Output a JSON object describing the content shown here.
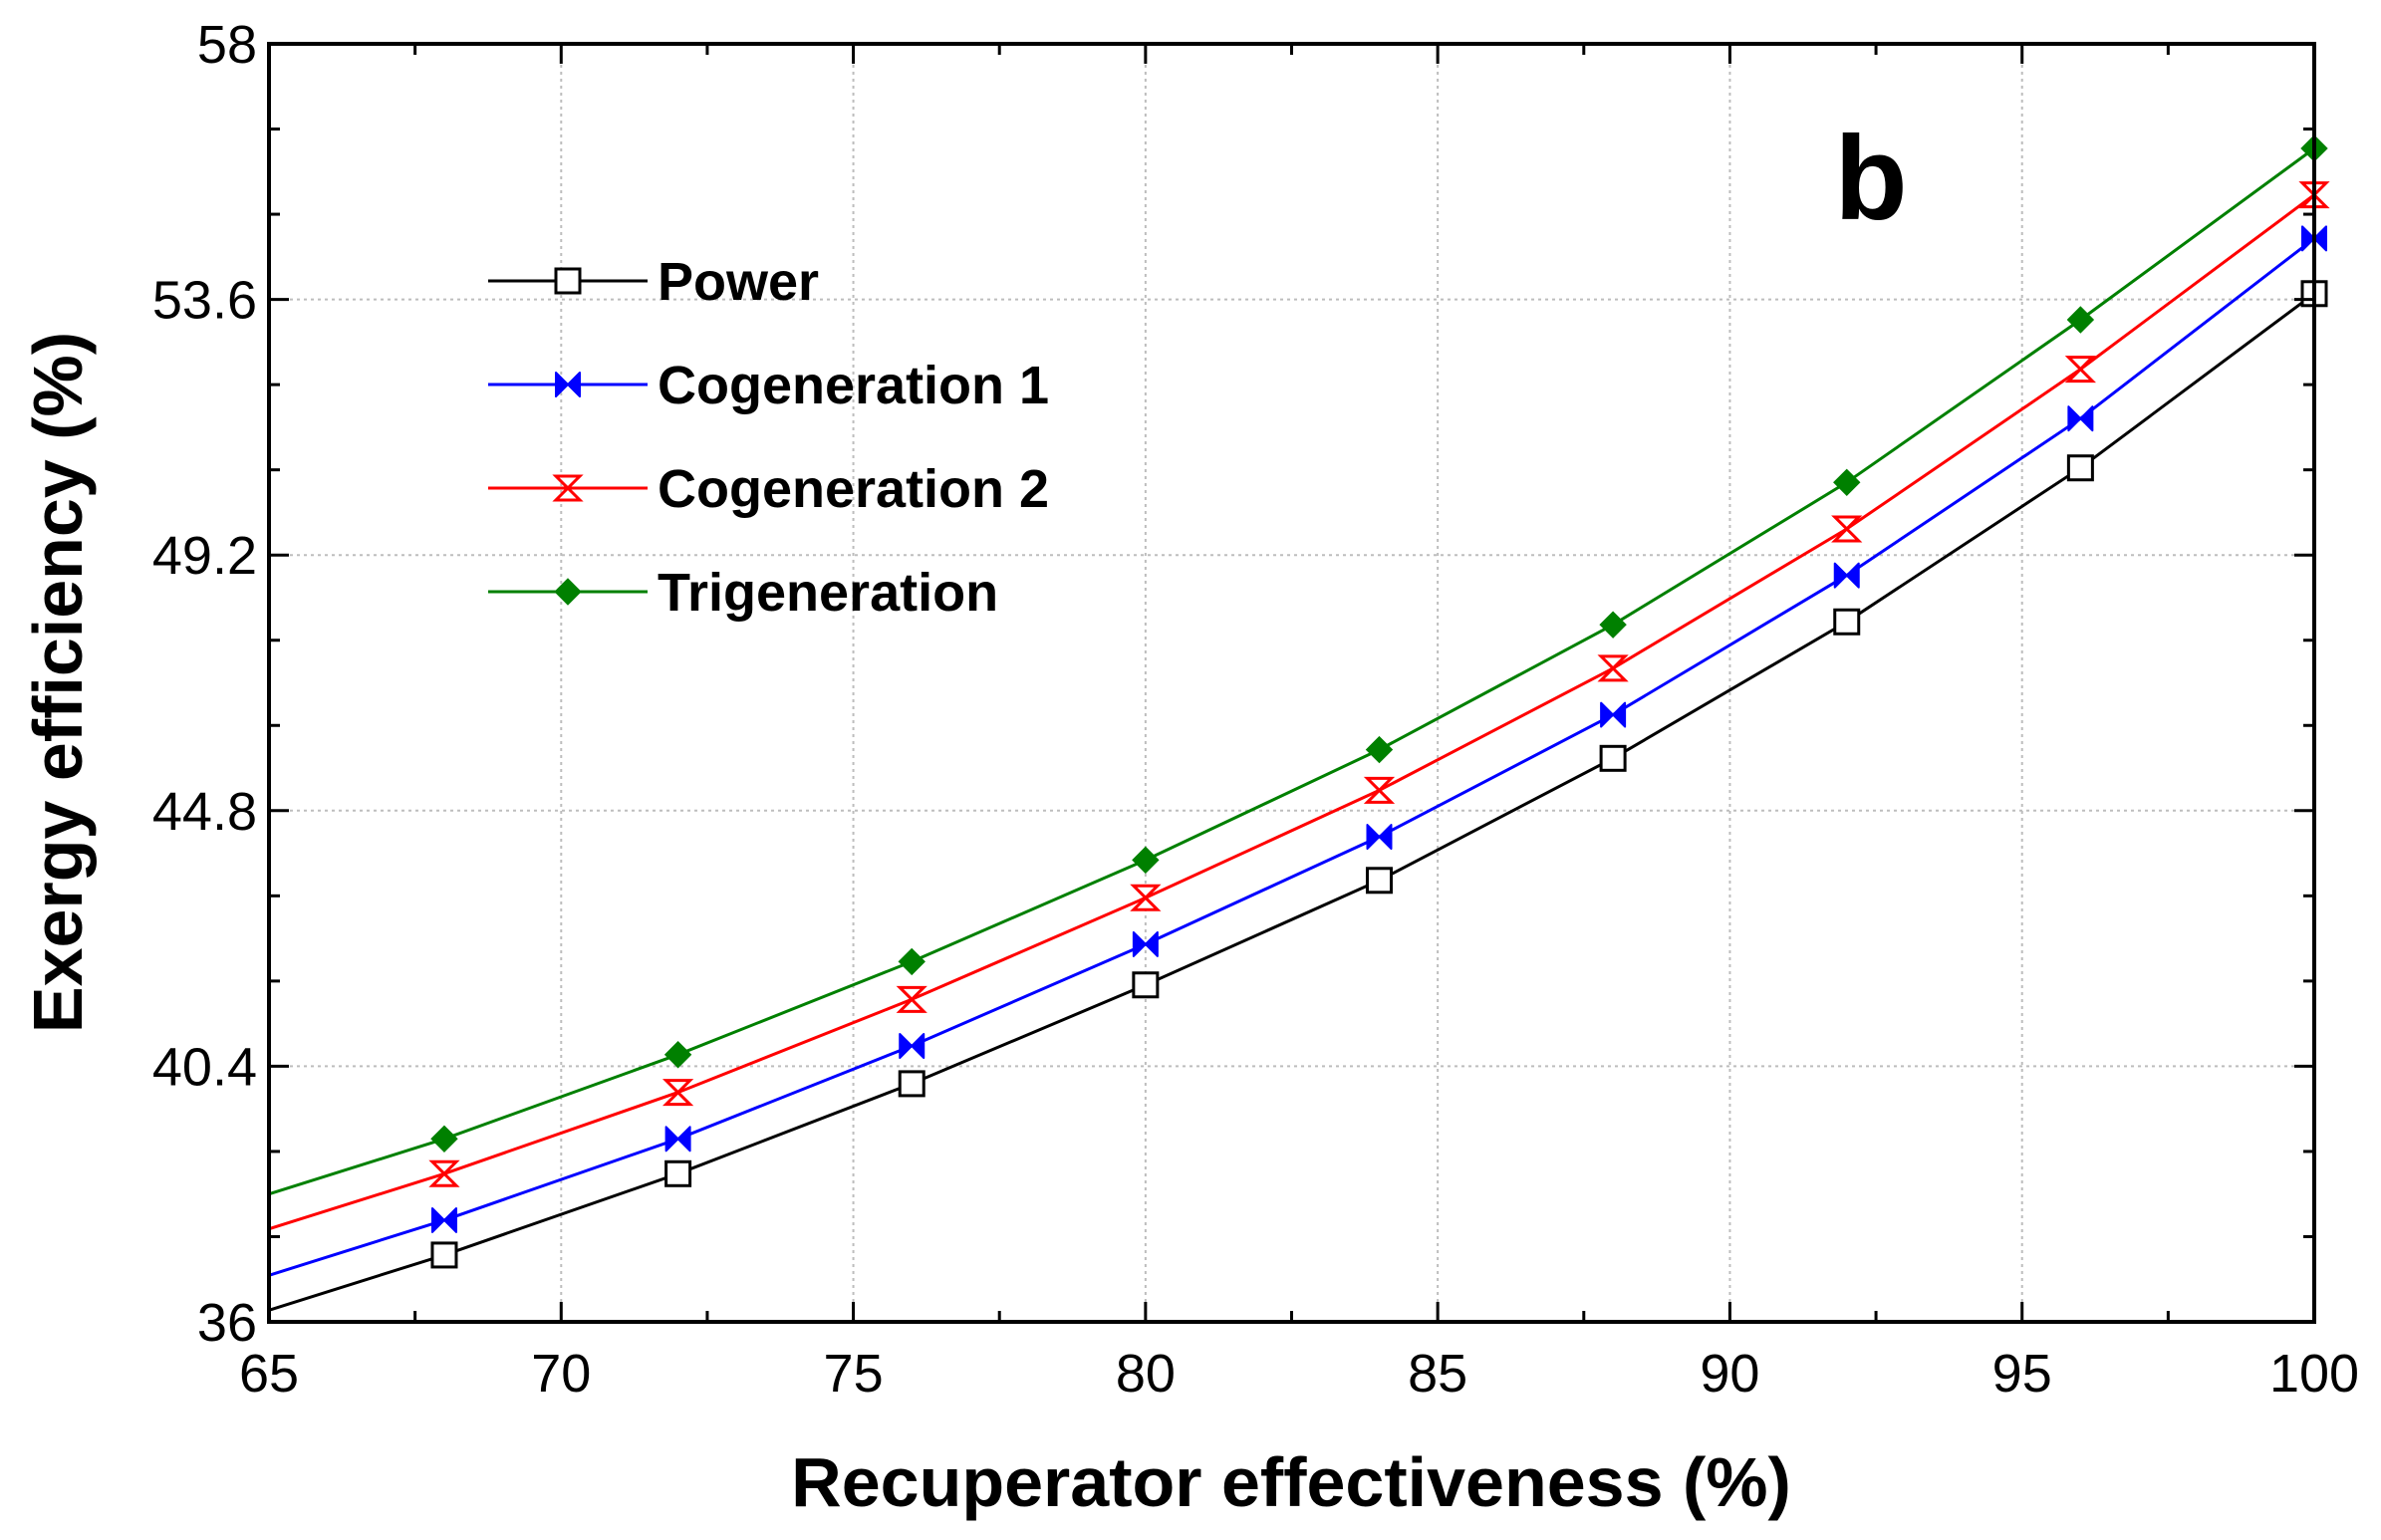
{
  "chart_data": {
    "type": "line",
    "panel_label": "b",
    "xlabel": "Recuperator effectiveness (%)",
    "ylabel": "Exergy efficiency (%)",
    "xlim": [
      65,
      100
    ],
    "ylim": [
      36,
      58
    ],
    "xticks": [
      65,
      70,
      75,
      80,
      85,
      90,
      95,
      100
    ],
    "xtick_labels": [
      "65",
      "70",
      "75",
      "80",
      "85",
      "90",
      "95",
      "100"
    ],
    "yticks": [
      36,
      40.4,
      44.8,
      49.2,
      53.6,
      58
    ],
    "ytick_labels": [
      "36",
      "40.4",
      "44.8",
      "49.2",
      "53.6",
      "58"
    ],
    "grid": true,
    "legend_position": "upper-left",
    "x": [
      65,
      68,
      72,
      76,
      80,
      84,
      88,
      92,
      96,
      100
    ],
    "series": [
      {
        "name": "Power",
        "color": "#000000",
        "marker": "open-square",
        "values": [
          36.2,
          37.15,
          38.55,
          40.1,
          41.8,
          43.6,
          45.7,
          48.05,
          50.7,
          53.7
        ]
      },
      {
        "name": "Cogeneration 1",
        "color": "#0000ff",
        "marker": "bowtie",
        "values": [
          36.8,
          37.75,
          39.15,
          40.75,
          42.5,
          44.35,
          46.45,
          48.85,
          51.55,
          54.65
        ]
      },
      {
        "name": "Cogeneration 2",
        "color": "#ff0000",
        "marker": "hourglass",
        "values": [
          37.6,
          38.55,
          39.95,
          41.55,
          43.3,
          45.15,
          47.25,
          49.65,
          52.4,
          55.4
        ]
      },
      {
        "name": "Trigeneration",
        "color": "#008000",
        "marker": "filled-diamond",
        "values": [
          38.2,
          39.15,
          40.6,
          42.2,
          43.95,
          45.85,
          48.0,
          50.45,
          53.25,
          56.2
        ]
      }
    ]
  }
}
